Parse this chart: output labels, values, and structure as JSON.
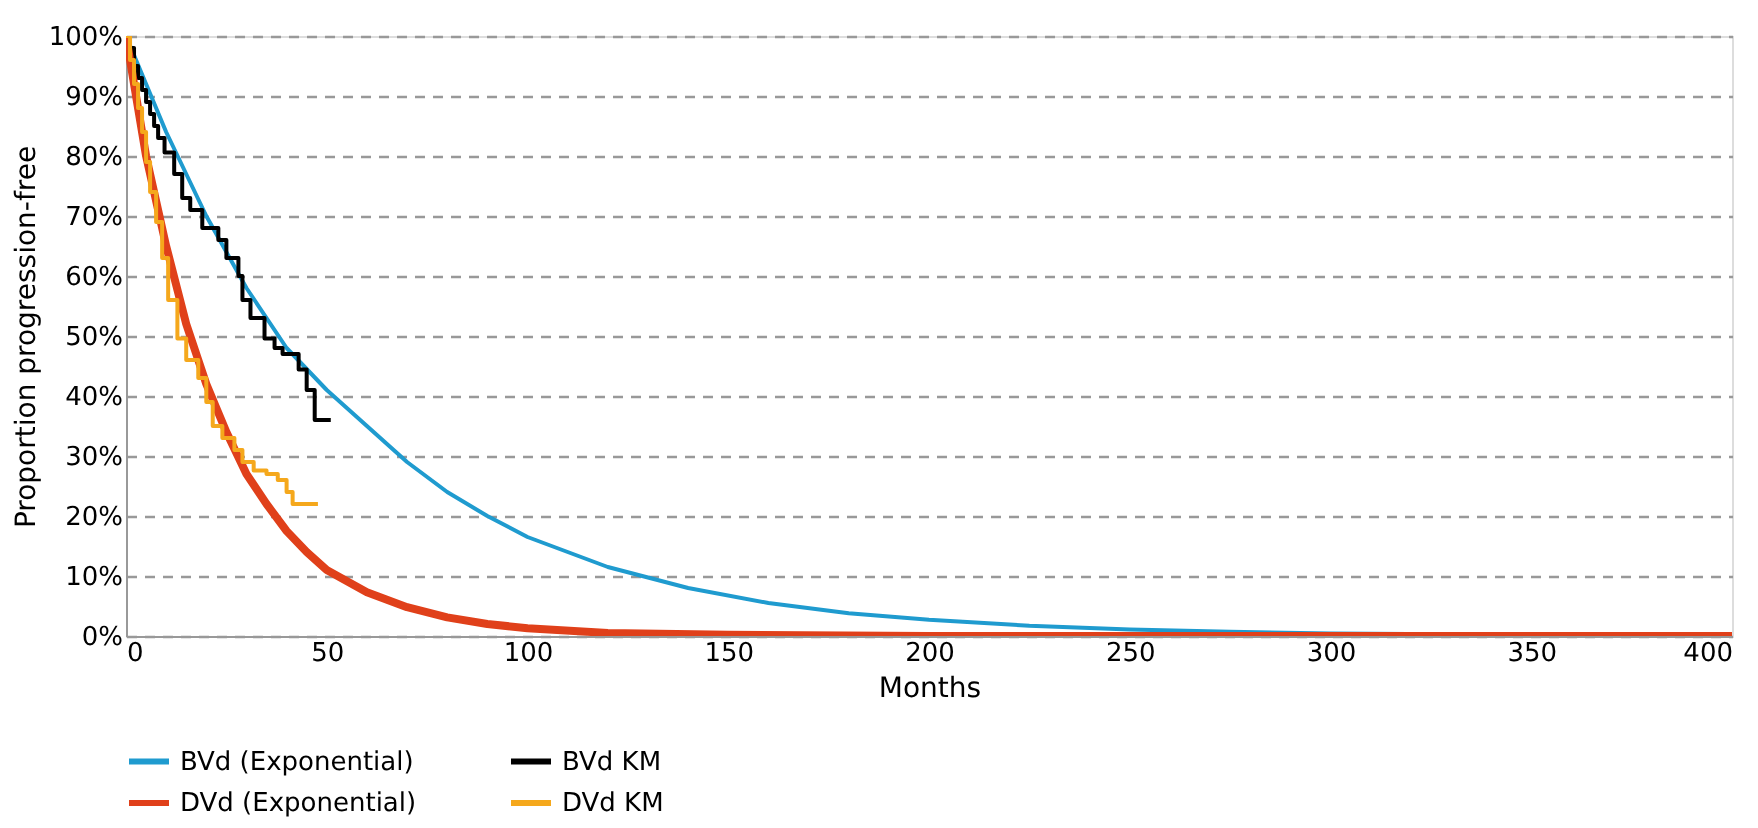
{
  "chart_data": {
    "type": "line",
    "xlabel": "Months",
    "ylabel": "Proportion progression-free",
    "xlim": [
      0,
      400
    ],
    "xticks": [
      0,
      50,
      100,
      150,
      200,
      250,
      300,
      350,
      400
    ],
    "ylim": [
      0,
      100
    ],
    "yticks": [
      {
        "value": 0,
        "label": "0%"
      },
      {
        "value": 10,
        "label": "10%"
      },
      {
        "value": 20,
        "label": "20%"
      },
      {
        "value": 30,
        "label": "30%"
      },
      {
        "value": 40,
        "label": "40%"
      },
      {
        "value": 50,
        "label": "50%"
      },
      {
        "value": 60,
        "label": "60%"
      },
      {
        "value": 70,
        "label": "70%"
      },
      {
        "value": 80,
        "label": "80%"
      },
      {
        "value": 90,
        "label": "90%"
      },
      {
        "value": 100,
        "label": "100%"
      }
    ],
    "grid": "y",
    "legend": "bottom",
    "marker": "none",
    "line_style": "solid",
    "series": [
      {
        "name": "BVd (Exponential)",
        "color": "#1f9bcf",
        "x": [
          0,
          10,
          20,
          30,
          40,
          50,
          60,
          70,
          80,
          90,
          100,
          120,
          140,
          160,
          180,
          200,
          225,
          250,
          275,
          300,
          350,
          400
        ],
        "values": [
          100,
          84,
          70,
          58,
          48,
          41,
          35,
          29,
          24,
          20,
          16.5,
          11.5,
          8,
          5.5,
          3.8,
          2.7,
          1.7,
          1.1,
          0.7,
          0.4,
          0.2,
          0.1
        ]
      },
      {
        "name": "BVd KM",
        "type": "step",
        "color": "#000000",
        "x": [
          0,
          1,
          2,
          3,
          4,
          5,
          6,
          7,
          8,
          9.6,
          12,
          14,
          16,
          19,
          23,
          25,
          28,
          29,
          31,
          34.5,
          37,
          39,
          43,
          45,
          47,
          51
        ],
        "values": [
          100,
          98,
          95,
          93,
          91,
          89,
          87,
          85,
          83,
          80.6,
          77,
          73,
          71,
          68,
          66,
          63,
          60,
          56,
          53,
          49.6,
          48,
          47,
          44.4,
          41,
          36,
          36
        ]
      },
      {
        "name": "DVd (Exponential)",
        "color": "#e0401a",
        "x": [
          0,
          5,
          10,
          15,
          20,
          25,
          30,
          35,
          40,
          45,
          50,
          60,
          70,
          80,
          90,
          100,
          120,
          150,
          200,
          400
        ],
        "values": [
          100,
          80,
          65,
          52,
          42,
          34,
          27,
          22,
          17.5,
          14,
          11,
          7.3,
          4.8,
          3.1,
          2,
          1.3,
          0.5,
          0.2,
          0,
          0
        ]
      },
      {
        "name": "DVd KM",
        "type": "step",
        "color": "#f5a81c",
        "x": [
          0,
          1,
          2,
          3,
          4,
          5,
          6,
          7.5,
          9,
          10.5,
          12.8,
          15,
          18,
          20,
          21.6,
          24,
          27,
          29,
          31.8,
          35,
          37.8,
          40,
          41.5,
          47.8
        ],
        "values": [
          100,
          96,
          92,
          88,
          84,
          79,
          74,
          69,
          63,
          56,
          49.6,
          46,
          43,
          39,
          35,
          33,
          31,
          29,
          27.6,
          27,
          26,
          24,
          22,
          22
        ]
      }
    ]
  }
}
